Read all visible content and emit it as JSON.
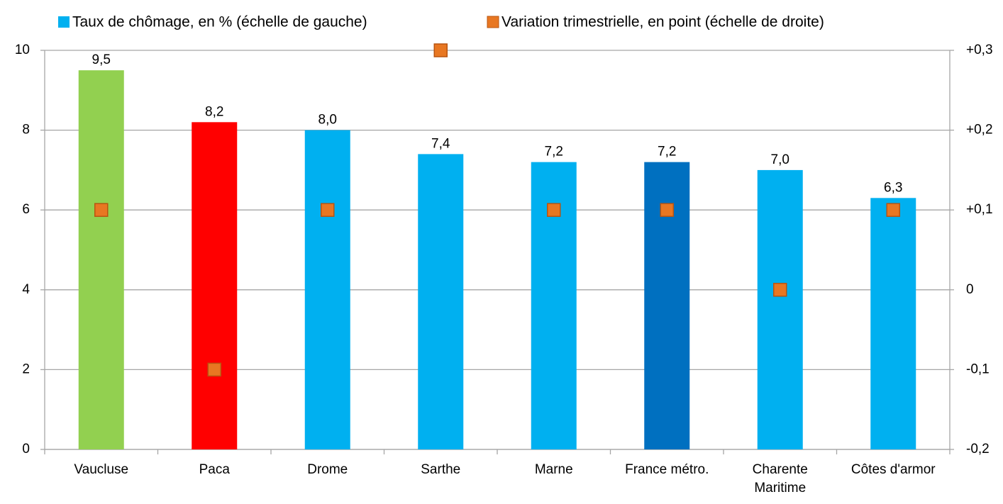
{
  "chart_data": {
    "type": "bar",
    "categories": [
      "Vaucluse",
      "Paca",
      "Drome",
      "Sarthe",
      "Marne",
      "France métro.",
      "Charente Maritime",
      "Côtes d'armor"
    ],
    "series": [
      {
        "name": "Taux de chômage, en % (échelle de gauche)",
        "type": "bar",
        "color": "#00b0f0",
        "colors": [
          "#92d050",
          "#ff0000",
          "#00b0f0",
          "#00b0f0",
          "#00b0f0",
          "#0070c0",
          "#00b0f0",
          "#00b0f0"
        ],
        "values": [
          9.5,
          8.2,
          8.0,
          7.4,
          7.2,
          7.2,
          7.0,
          6.3
        ],
        "value_labels": [
          "9,5",
          "8,2",
          "8,0",
          "7,4",
          "7,2",
          "7,2",
          "7,0",
          "6,3"
        ]
      },
      {
        "name": "Variation trimestrielle, en point (échelle de droite)",
        "type": "scatter",
        "color": "#e87722",
        "axis": "y2",
        "values": [
          0.1,
          -0.1,
          0.1,
          0.3,
          0.1,
          0.1,
          0,
          0.1
        ]
      }
    ],
    "ylim": [
      0,
      10
    ],
    "yticks": [
      0,
      2,
      4,
      6,
      8,
      10
    ],
    "y2lim": [
      -0.2,
      0.3
    ],
    "y2ticks": [
      {
        "value": -0.2,
        "label": "-0,2"
      },
      {
        "value": -0.1,
        "label": "-0,1"
      },
      0,
      {
        "value": 0.1,
        "label": "+0,1"
      },
      {
        "value": 0.2,
        "label": "+0,2"
      },
      {
        "value": 0.3,
        "label": "+0,3"
      }
    ],
    "grid": true,
    "legend": "top"
  }
}
